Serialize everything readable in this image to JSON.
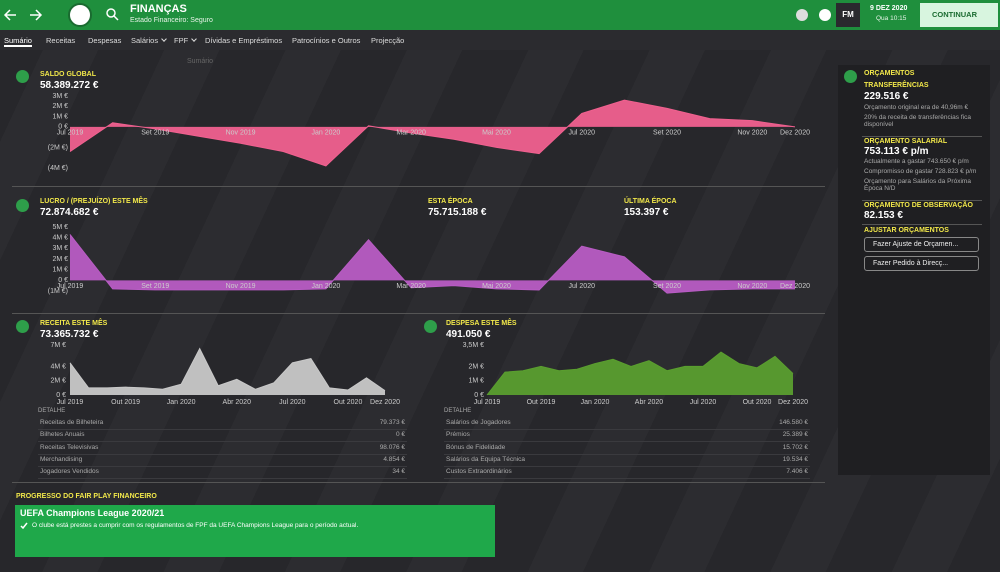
{
  "top_bar": {
    "title": "FINANÇAS",
    "subtitle": "Estado Financeiro: Seguro",
    "badge": "FM",
    "date": "9 DEZ 2020",
    "time": "Qua 10:15",
    "continue_button": "CONTINUAR"
  },
  "tabs": [
    "Sumário",
    "Receitas",
    "Despesas",
    "Salários",
    "FPF",
    "Dívidas e Empréstimos",
    "Patrocínios e Outros",
    "Projecção"
  ],
  "dropdown_item": "Sumário",
  "saldo_global": {
    "label": "SALDO GLOBAL",
    "value": "58.389.272 €",
    "chart": {
      "type": "area",
      "color": "#f0608f",
      "categories": [
        "Jul 2019",
        null,
        "Set 2019",
        null,
        "Nov 2019",
        null,
        "Jan 2020",
        null,
        "Mar 2020",
        null,
        "Mai 2020",
        null,
        "Jul 2020",
        null,
        "Set 2020",
        null,
        "Nov 2020",
        "Dez 2020"
      ],
      "values": [
        -2400000,
        400000,
        -200000,
        -900000,
        -1600000,
        -2400000,
        -3800000,
        100000,
        -600000,
        -1200000,
        -2000000,
        -2600000,
        1300000,
        2600000,
        1800000,
        800000,
        600000,
        0
      ],
      "ylim": [
        -4000000,
        3000000
      ],
      "yticks": [
        {
          "value": 3000000,
          "label": "3M €"
        },
        {
          "value": 2000000,
          "label": "2M €"
        },
        {
          "value": 1000000,
          "label": "1M €"
        },
        {
          "value": 0,
          "label": "0 €"
        },
        {
          "value": -2000000,
          "label": "(2M €)"
        },
        {
          "value": -4000000,
          "label": "(4M €)"
        }
      ]
    }
  },
  "lucro": {
    "label": "LUCRO / (PREJUÍZO) ESTE MÊS",
    "value": "72.874.682 €",
    "this_season_label": "ESTA ÉPOCA",
    "this_season_value": "75.715.188 €",
    "last_season_label": "ÚLTIMA ÉPOCA",
    "last_season_value": "153.397 €",
    "chart": {
      "type": "area",
      "color": "#b85cc4",
      "categories": [
        "Jul 2019",
        null,
        "Set 2019",
        null,
        "Nov 2019",
        null,
        "Jan 2020",
        null,
        "Mar 2020",
        null,
        "Mai 2020",
        null,
        "Jul 2020",
        null,
        "Set 2020",
        null,
        "Nov 2020",
        "Dez 2020"
      ],
      "values": [
        4300000,
        -800000,
        -900000,
        -900000,
        -900000,
        -900000,
        -800000,
        3800000,
        -700000,
        -500000,
        -800000,
        -900000,
        3200000,
        2200000,
        -1200000,
        -900000,
        -800000,
        -800000
      ],
      "ylim": [
        -1000000,
        5000000
      ],
      "yticks": [
        {
          "value": 5000000,
          "label": "5M €"
        },
        {
          "value": 4000000,
          "label": "4M €"
        },
        {
          "value": 3000000,
          "label": "3M €"
        },
        {
          "value": 2000000,
          "label": "2M €"
        },
        {
          "value": 1000000,
          "label": "1M €"
        },
        {
          "value": 0,
          "label": "0 €"
        },
        {
          "value": -1000000,
          "label": "(1M €)"
        }
      ]
    }
  },
  "receita": {
    "label": "RECEITA ESTE MÊS",
    "value": "73.365.732 €",
    "chart": {
      "type": "area",
      "color": "#c8c8c8",
      "categories": [
        "Jul 2019",
        null,
        null,
        "Out 2019",
        null,
        null,
        "Jan 2020",
        null,
        null,
        "Abr 2020",
        null,
        null,
        "Jul 2020",
        null,
        null,
        "Out 2020",
        null,
        "Dez 2020"
      ],
      "values": [
        4500000,
        1000000,
        1000000,
        1100000,
        1000000,
        800000,
        1500000,
        6500000,
        1300000,
        2200000,
        800000,
        1700000,
        4500000,
        5100000,
        1000000,
        700000,
        2400000,
        600000
      ],
      "ylim": [
        0,
        7000000
      ],
      "yticks": [
        {
          "value": 7000000,
          "label": "7M €"
        },
        {
          "value": 4000000,
          "label": "4M €"
        },
        {
          "value": 2000000,
          "label": "2M €"
        },
        {
          "value": 0,
          "label": "0 €"
        }
      ]
    },
    "detail_heading": "DETALHE",
    "detail_rows": [
      [
        "Receitas de Bilheteira",
        "79.373 €"
      ],
      [
        "Bilhetes Anuais",
        "0 €"
      ],
      [
        "Receitas Televisivas",
        "98.076 €"
      ],
      [
        "Merchandising",
        "4.854 €"
      ],
      [
        "Jogadores Vendidos",
        "34 €"
      ]
    ]
  },
  "despesa": {
    "label": "DESPESA ESTE MÊS",
    "value": "491.050 €",
    "chart": {
      "type": "area",
      "color": "#5a9e2f",
      "categories": [
        "Jul 2019",
        null,
        null,
        "Out 2019",
        null,
        null,
        "Jan 2020",
        null,
        null,
        "Abr 2020",
        null,
        null,
        "Jul 2020",
        null,
        null,
        "Out 2020",
        null,
        "Dez 2020"
      ],
      "values": [
        0,
        1600000,
        1700000,
        2000000,
        1700000,
        1800000,
        2200000,
        2500000,
        2000000,
        2400000,
        1700000,
        2000000,
        2000000,
        3000000,
        2200000,
        1900000,
        2700000,
        1500000
      ],
      "ylim": [
        0,
        3500000
      ],
      "yticks": [
        {
          "value": 3500000,
          "label": "3,5M €"
        },
        {
          "value": 2000000,
          "label": "2M €"
        },
        {
          "value": 1000000,
          "label": "1M €"
        },
        {
          "value": 0,
          "label": "0 €"
        }
      ]
    },
    "detail_heading": "DETALHE",
    "detail_rows": [
      [
        "Salários de Jogadores",
        "146.580 €"
      ],
      [
        "Prémios",
        "25.389 €"
      ],
      [
        "Bónus de Fidelidade",
        "15.702 €"
      ],
      [
        "Salários da Equipa Técnica",
        "19.534 €"
      ],
      [
        "Custos Extraordinários",
        "7.406 €"
      ]
    ]
  },
  "budgets": {
    "title": "ORÇAMENTOS",
    "transfers_label": "TRANSFERÊNCIAS",
    "transfers_value": "229.516 €",
    "transfers_note1": "Orçamento original era de 40,96m €",
    "transfers_note2": "20% da receita de transferências fica disponível",
    "wage_label": "ORÇAMENTO SALARIAL",
    "wage_value": "753.113 € p/m",
    "wage_note1": "Actualmente a gastar 743.650 € p/m",
    "wage_note2": "Compromisso de gastar 728.823 € p/m",
    "wage_note3": "Orçamento para Salários da Próxima Época N/D",
    "scouting_label": "ORÇAMENTO DE OBSERVAÇÃO",
    "scouting_value": "82.153 €",
    "adjust_label": "AJUSTAR ORÇAMENTOS",
    "adjust_button": "Fazer Ajuste de Orçamen...",
    "request_button": "Fazer Pedido à Direcç..."
  },
  "fair_play": {
    "title": "PROGRESSO DO FAIR PLAY FINANCEIRO",
    "competition": "UEFA Champions League 2020/21",
    "message": "O clube está prestes a cumprir com os regulamentos de FPF da UEFA Champions League para o período actual."
  }
}
